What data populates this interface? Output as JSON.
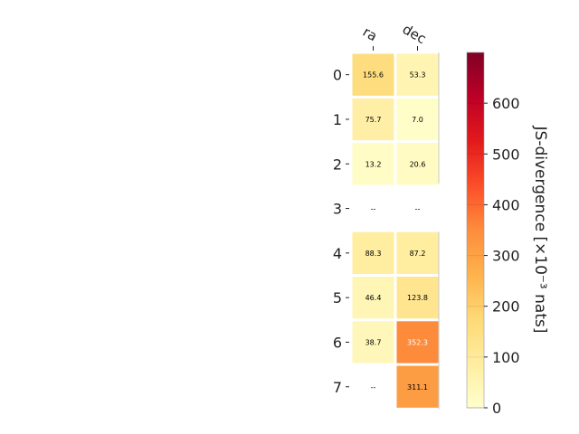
{
  "chart_data": {
    "type": "heatmap",
    "columns": [
      "ra",
      "dec"
    ],
    "rows": [
      "0",
      "1",
      "2",
      "3",
      "4",
      "5",
      "6",
      "7"
    ],
    "values": [
      [
        155.6,
        53.3
      ],
      [
        75.7,
        7.0
      ],
      [
        13.2,
        20.6
      ],
      [
        null,
        null
      ],
      [
        88.3,
        87.2
      ],
      [
        46.4,
        123.8
      ],
      [
        38.7,
        352.3
      ],
      [
        null,
        311.1
      ]
    ],
    "cell_labels": [
      [
        "155.6",
        "53.3"
      ],
      [
        "75.7",
        "7.0"
      ],
      [
        "13.2",
        "20.6"
      ],
      [
        "--",
        "--"
      ],
      [
        "88.3",
        "87.2"
      ],
      [
        "46.4",
        "123.8"
      ],
      [
        "38.7",
        "352.3"
      ],
      [
        "--",
        "311.1"
      ]
    ],
    "colorbar": {
      "label": "JS-divergence [×10⁻³ nats]",
      "min": 0,
      "max": 700,
      "ticks": [
        "0",
        "100",
        "200",
        "300",
        "400",
        "500",
        "600"
      ],
      "colormap": "YlOrRd"
    },
    "grid": false
  }
}
